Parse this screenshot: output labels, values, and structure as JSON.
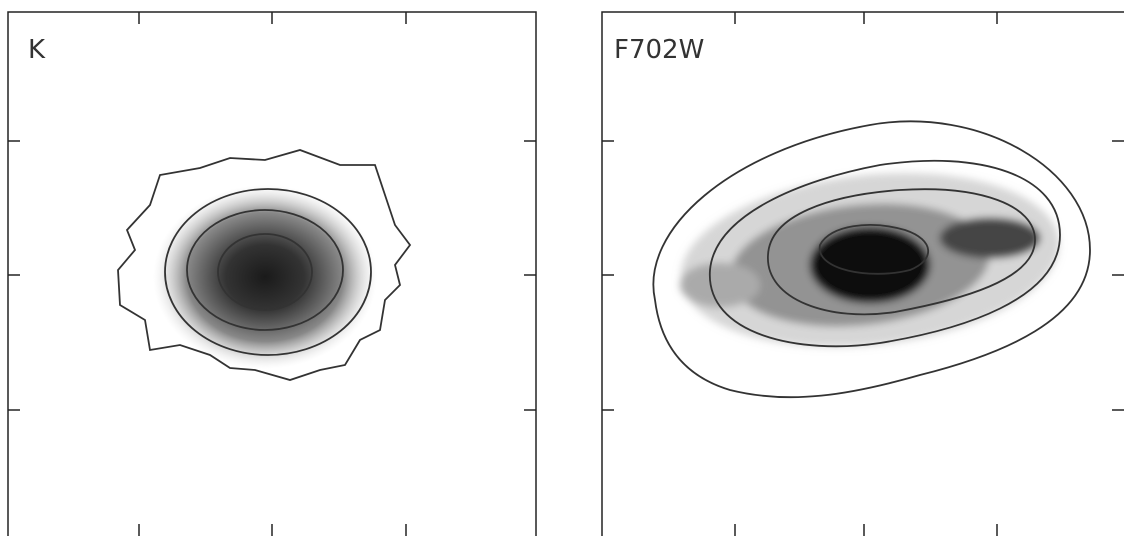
{
  "panels": [
    {
      "label": "K"
    },
    {
      "label": "F702W"
    }
  ]
}
